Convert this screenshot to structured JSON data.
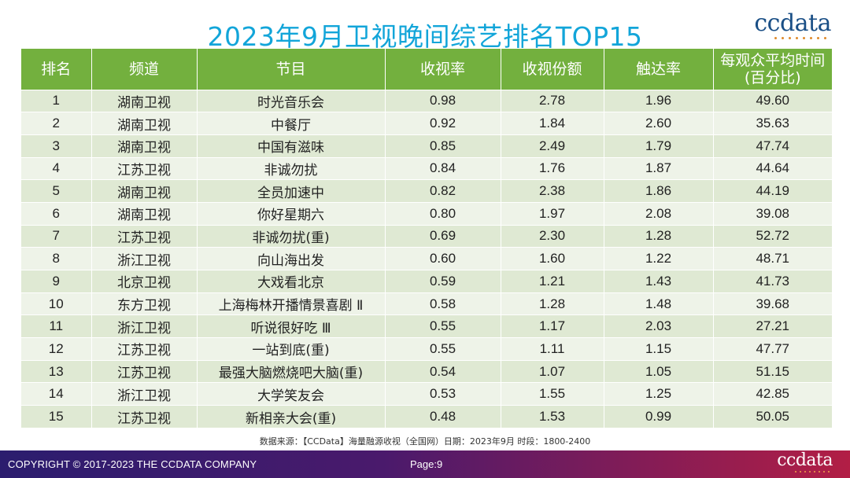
{
  "title": "2023年9月卫视晚间综艺排名TOP15",
  "logo": {
    "text": "ccdata"
  },
  "table": {
    "headers": [
      "排名",
      "频道",
      "节目",
      "收视率",
      "收视份额",
      "触达率",
      "每观众平均时间\n(百分比)"
    ],
    "rows": [
      [
        "1",
        "湖南卫视",
        "时光音乐会",
        "0.98",
        "2.78",
        "1.96",
        "49.60"
      ],
      [
        "2",
        "湖南卫视",
        "中餐厅",
        "0.92",
        "1.84",
        "2.60",
        "35.63"
      ],
      [
        "3",
        "湖南卫视",
        "中国有滋味",
        "0.85",
        "2.49",
        "1.79",
        "47.74"
      ],
      [
        "4",
        "江苏卫视",
        "非诚勿扰",
        "0.84",
        "1.76",
        "1.87",
        "44.64"
      ],
      [
        "5",
        "湖南卫视",
        "全员加速中",
        "0.82",
        "2.38",
        "1.86",
        "44.19"
      ],
      [
        "6",
        "湖南卫视",
        "你好星期六",
        "0.80",
        "1.97",
        "2.08",
        "39.08"
      ],
      [
        "7",
        "江苏卫视",
        "非诚勿扰(重)",
        "0.69",
        "2.30",
        "1.28",
        "52.72"
      ],
      [
        "8",
        "浙江卫视",
        "向山海出发",
        "0.60",
        "1.60",
        "1.22",
        "48.71"
      ],
      [
        "9",
        "北京卫视",
        "大戏看北京",
        "0.59",
        "1.21",
        "1.43",
        "41.73"
      ],
      [
        "10",
        "东方卫视",
        "上海梅林开播情景喜剧 Ⅱ",
        "0.58",
        "1.28",
        "1.48",
        "39.68"
      ],
      [
        "11",
        "浙江卫视",
        "听说很好吃 Ⅲ",
        "0.55",
        "1.17",
        "2.03",
        "27.21"
      ],
      [
        "12",
        "江苏卫视",
        "一站到底(重)",
        "0.55",
        "1.11",
        "1.15",
        "47.77"
      ],
      [
        "13",
        "江苏卫视",
        "最强大脑燃烧吧大脑(重)",
        "0.54",
        "1.07",
        "1.05",
        "51.15"
      ],
      [
        "14",
        "浙江卫视",
        "大学笑友会",
        "0.53",
        "1.55",
        "1.25",
        "42.85"
      ],
      [
        "15",
        "江苏卫视",
        "新相亲大会(重)",
        "0.48",
        "1.53",
        "0.99",
        "50.05"
      ]
    ]
  },
  "source": "数据来源：【CCData】海量融源收视（全国网）日期：2023年9月  时段：1800-2400",
  "footer": {
    "copyright": "COPYRIGHT © 2017-2023 THE CCDATA COMPANY",
    "page": "Page:9",
    "logo_text": "ccdata"
  },
  "colors": {
    "title": "#12a5d9",
    "header_bg": "#73b03e",
    "row_odd": "#dfe9d3",
    "row_even": "#eef3e8",
    "footer_start": "#2b1d6e",
    "footer_end": "#b21e45"
  }
}
